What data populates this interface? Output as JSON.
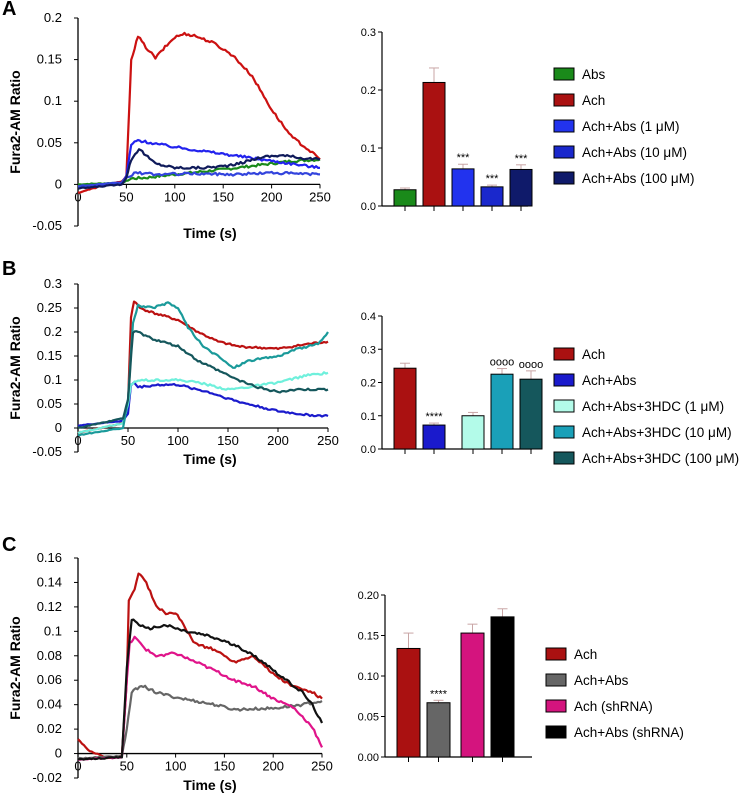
{
  "chart_data": [
    {
      "panel": "A",
      "type": "line",
      "xlabel": "Time (s)",
      "ylabel": "Fura2-AM Ratio",
      "xlim": [
        0,
        250
      ],
      "ylim": [
        -0.05,
        0.2
      ],
      "xticks": [
        0,
        50,
        100,
        150,
        200,
        250
      ],
      "yticks": [
        -0.05,
        0,
        0.05,
        0.1,
        0.15,
        0.2
      ],
      "ytick_labels": [
        "-0.05",
        "0",
        "0.05",
        "0.1",
        "0.15",
        "0.2"
      ],
      "series": [
        {
          "name": "Abs",
          "color": "#1a8a1a",
          "points": [
            [
              0,
              0
            ],
            [
              45,
              0.002
            ],
            [
              50,
              0.004
            ],
            [
              55,
              0.007
            ],
            [
              70,
              0.008
            ],
            [
              100,
              0.012
            ],
            [
              150,
              0.018
            ],
            [
              200,
              0.025
            ],
            [
              220,
              0.028
            ],
            [
              250,
              0.03
            ]
          ]
        },
        {
          "name": "Ach",
          "color": "#cc1111",
          "points": [
            [
              0,
              -0.01
            ],
            [
              30,
              0
            ],
            [
              45,
              0.003
            ],
            [
              50,
              0.01
            ],
            [
              55,
              0.15
            ],
            [
              62,
              0.178
            ],
            [
              70,
              0.165
            ],
            [
              80,
              0.152
            ],
            [
              90,
              0.165
            ],
            [
              100,
              0.177
            ],
            [
              110,
              0.181
            ],
            [
              120,
              0.179
            ],
            [
              140,
              0.17
            ],
            [
              160,
              0.155
            ],
            [
              180,
              0.13
            ],
            [
              200,
              0.09
            ],
            [
              220,
              0.058
            ],
            [
              240,
              0.04
            ],
            [
              250,
              0.03
            ]
          ]
        },
        {
          "name": "Ach+Abs (1 μM)",
          "color": "#2222ee",
          "points": [
            [
              0,
              -0.003
            ],
            [
              45,
              0.002
            ],
            [
              50,
              0.01
            ],
            [
              55,
              0.048
            ],
            [
              62,
              0.053
            ],
            [
              75,
              0.05
            ],
            [
              100,
              0.045
            ],
            [
              130,
              0.04
            ],
            [
              160,
              0.035
            ],
            [
              190,
              0.03
            ],
            [
              220,
              0.025
            ],
            [
              250,
              0.02
            ]
          ]
        },
        {
          "name": "Ach+Abs (10 μM)",
          "color": "#3344dd",
          "points": [
            [
              0,
              -0.002
            ],
            [
              45,
              0.002
            ],
            [
              50,
              0.008
            ],
            [
              60,
              0.014
            ],
            [
              80,
              0.012
            ],
            [
              120,
              0.013
            ],
            [
              160,
              0.012
            ],
            [
              200,
              0.014
            ],
            [
              250,
              0.012
            ]
          ]
        },
        {
          "name": "Ach+Abs (100 μM)",
          "color": "#0f1a5a",
          "points": [
            [
              0,
              -0.005
            ],
            [
              45,
              0
            ],
            [
              50,
              0.008
            ],
            [
              55,
              0.03
            ],
            [
              63,
              0.043
            ],
            [
              70,
              0.035
            ],
            [
              80,
              0.025
            ],
            [
              100,
              0.02
            ],
            [
              130,
              0.02
            ],
            [
              160,
              0.023
            ],
            [
              190,
              0.033
            ],
            [
              210,
              0.035
            ],
            [
              230,
              0.032
            ],
            [
              250,
              0.03
            ]
          ]
        }
      ]
    },
    {
      "panel": "A",
      "type": "bar",
      "categories": [
        "Abs",
        "Ach",
        "Ach+Abs (1 μM)",
        "Ach+Abs (10 μM)",
        "Ach+Abs (100 μM)"
      ],
      "values": [
        0.028,
        0.213,
        0.064,
        0.033,
        0.063
      ],
      "errors": [
        0.003,
        0.025,
        0.008,
        0.003,
        0.008
      ],
      "colors": [
        "#1a8a1a",
        "#aa1111",
        "#2233ee",
        "#1a28cc",
        "#0f1a6a"
      ],
      "significance": [
        "",
        "",
        "***",
        "***",
        "***"
      ],
      "ylim": [
        0,
        0.3
      ],
      "yticks": [
        0,
        0.1,
        0.2,
        0.3
      ],
      "ytick_labels": [
        "0.0",
        "0.1",
        "0.2",
        "0.3"
      ]
    },
    {
      "panel": "B",
      "type": "line",
      "xlabel": "Time (s)",
      "ylabel": "Fura2-AM Ratio",
      "xlim": [
        0,
        250
      ],
      "ylim": [
        -0.05,
        0.3
      ],
      "xticks": [
        0,
        50,
        100,
        150,
        200,
        250
      ],
      "yticks": [
        -0.05,
        0,
        0.05,
        0.1,
        0.15,
        0.2,
        0.25,
        0.3
      ],
      "ytick_labels": [
        "-0.05",
        "0",
        "0.05",
        "0.1",
        "0.15",
        "0.2",
        "0.25",
        "0.3"
      ],
      "series": [
        {
          "name": "Ach",
          "color": "#bb1111",
          "points": [
            [
              0,
              -0.01
            ],
            [
              45,
              0.01
            ],
            [
              50,
              0.05
            ],
            [
              53,
              0.23
            ],
            [
              56,
              0.265
            ],
            [
              62,
              0.25
            ],
            [
              75,
              0.24
            ],
            [
              100,
              0.225
            ],
            [
              120,
              0.2
            ],
            [
              140,
              0.18
            ],
            [
              160,
              0.17
            ],
            [
              200,
              0.165
            ],
            [
              230,
              0.175
            ],
            [
              250,
              0.18
            ]
          ]
        },
        {
          "name": "Ach+Abs",
          "color": "#1a1acc",
          "points": [
            [
              0,
              0.005
            ],
            [
              45,
              0.015
            ],
            [
              50,
              0.03
            ],
            [
              53,
              0.09
            ],
            [
              56,
              0.095
            ],
            [
              60,
              0.085
            ],
            [
              80,
              0.09
            ],
            [
              100,
              0.09
            ],
            [
              130,
              0.075
            ],
            [
              160,
              0.055
            ],
            [
              200,
              0.035
            ],
            [
              230,
              0.027
            ],
            [
              250,
              0.025
            ]
          ]
        },
        {
          "name": "Ach+Abs+3HDC (1 μM)",
          "color": "#6ff0dc",
          "points": [
            [
              0,
              -0.01
            ],
            [
              45,
              0.01
            ],
            [
              50,
              0.05
            ],
            [
              53,
              0.09
            ],
            [
              60,
              0.1
            ],
            [
              80,
              0.1
            ],
            [
              100,
              0.1
            ],
            [
              120,
              0.095
            ],
            [
              150,
              0.08
            ],
            [
              170,
              0.085
            ],
            [
              200,
              0.095
            ],
            [
              230,
              0.11
            ],
            [
              250,
              0.115
            ]
          ]
        },
        {
          "name": "Ach+Abs+3HDC (10 μM)",
          "color": "#1a9a9a",
          "points": [
            [
              0,
              -0.015
            ],
            [
              45,
              0
            ],
            [
              50,
              0.06
            ],
            [
              55,
              0.22
            ],
            [
              60,
              0.255
            ],
            [
              75,
              0.25
            ],
            [
              90,
              0.26
            ],
            [
              100,
              0.25
            ],
            [
              110,
              0.21
            ],
            [
              125,
              0.17
            ],
            [
              140,
              0.15
            ],
            [
              155,
              0.125
            ],
            [
              170,
              0.14
            ],
            [
              200,
              0.15
            ],
            [
              220,
              0.165
            ],
            [
              240,
              0.175
            ],
            [
              250,
              0.2
            ]
          ]
        },
        {
          "name": "Ach+Abs+3HDC (100 μM)",
          "color": "#15575c",
          "points": [
            [
              0,
              0
            ],
            [
              45,
              0.02
            ],
            [
              50,
              0.06
            ],
            [
              55,
              0.2
            ],
            [
              60,
              0.2
            ],
            [
              75,
              0.185
            ],
            [
              100,
              0.17
            ],
            [
              120,
              0.14
            ],
            [
              140,
              0.12
            ],
            [
              160,
              0.1
            ],
            [
              180,
              0.085
            ],
            [
              200,
              0.075
            ],
            [
              220,
              0.08
            ],
            [
              250,
              0.08
            ]
          ]
        }
      ]
    },
    {
      "panel": "B",
      "type": "bar",
      "categories": [
        "Ach",
        "Ach+Abs",
        "Ach+Abs+3HDC (1 μM)",
        "Ach+Abs+3HDC (10 μM)",
        "Ach+Abs+3HDC (100 μM)"
      ],
      "values": [
        0.243,
        0.072,
        0.1,
        0.225,
        0.21
      ],
      "errors": [
        0.015,
        0.006,
        0.01,
        0.017,
        0.025
      ],
      "colors": [
        "#aa1111",
        "#1a1acc",
        "#b3fbe9",
        "#1aa0b8",
        "#15575c"
      ],
      "significance": [
        "",
        "****",
        "",
        "oooo",
        "oooo"
      ],
      "ylim": [
        0,
        0.4
      ],
      "yticks": [
        0,
        0.1,
        0.2,
        0.3,
        0.4
      ],
      "ytick_labels": [
        "0.0",
        "0.1",
        "0.2",
        "0.3",
        "0.4"
      ]
    },
    {
      "panel": "C",
      "type": "line",
      "xlabel": "Time (s)",
      "ylabel": "Fura2-AM Ratio",
      "xlim": [
        0,
        250
      ],
      "ylim": [
        -0.02,
        0.16
      ],
      "xticks": [
        0,
        50,
        100,
        150,
        200,
        250
      ],
      "yticks": [
        -0.02,
        0,
        0.02,
        0.04,
        0.06,
        0.08,
        0.1,
        0.12,
        0.14,
        0.16
      ],
      "ytick_labels": [
        "-0.02",
        "0",
        "0.02",
        "0.04",
        "0.06",
        "0.08",
        "0.1",
        "0.12",
        "0.14",
        "0.16"
      ],
      "series": [
        {
          "name": "Ach",
          "color": "#bb1111",
          "points": [
            [
              0,
              0.012
            ],
            [
              10,
              0.003
            ],
            [
              30,
              -0.004
            ],
            [
              45,
              -0.002
            ],
            [
              50,
              0.06
            ],
            [
              52,
              0.125
            ],
            [
              58,
              0.135
            ],
            [
              62,
              0.148
            ],
            [
              70,
              0.14
            ],
            [
              80,
              0.12
            ],
            [
              90,
              0.115
            ],
            [
              100,
              0.115
            ],
            [
              120,
              0.09
            ],
            [
              140,
              0.085
            ],
            [
              160,
              0.075
            ],
            [
              180,
              0.08
            ],
            [
              200,
              0.065
            ],
            [
              220,
              0.055
            ],
            [
              240,
              0.05
            ],
            [
              250,
              0.045
            ]
          ]
        },
        {
          "name": "Ach+Abs",
          "color": "#666666",
          "points": [
            [
              0,
              -0.004
            ],
            [
              45,
              -0.002
            ],
            [
              50,
              0.02
            ],
            [
              55,
              0.05
            ],
            [
              65,
              0.056
            ],
            [
              80,
              0.05
            ],
            [
              100,
              0.046
            ],
            [
              140,
              0.04
            ],
            [
              160,
              0.036
            ],
            [
              200,
              0.037
            ],
            [
              230,
              0.04
            ],
            [
              250,
              0.043
            ]
          ]
        },
        {
          "name": "Ach (shRNA)",
          "color": "#e0148a",
          "points": [
            [
              0,
              -0.005
            ],
            [
              45,
              -0.003
            ],
            [
              50,
              0.06
            ],
            [
              53,
              0.09
            ],
            [
              58,
              0.095
            ],
            [
              70,
              0.085
            ],
            [
              80,
              0.08
            ],
            [
              100,
              0.082
            ],
            [
              120,
              0.075
            ],
            [
              140,
              0.068
            ],
            [
              160,
              0.06
            ],
            [
              180,
              0.055
            ],
            [
              200,
              0.045
            ],
            [
              220,
              0.038
            ],
            [
              240,
              0.022
            ],
            [
              250,
              0.005
            ]
          ]
        },
        {
          "name": "Ach+Abs (shRNA)",
          "color": "#111111",
          "points": [
            [
              0,
              -0.005
            ],
            [
              45,
              -0.003
            ],
            [
              50,
              0.07
            ],
            [
              55,
              0.11
            ],
            [
              70,
              0.102
            ],
            [
              90,
              0.105
            ],
            [
              110,
              0.1
            ],
            [
              130,
              0.097
            ],
            [
              150,
              0.092
            ],
            [
              170,
              0.085
            ],
            [
              190,
              0.075
            ],
            [
              210,
              0.062
            ],
            [
              230,
              0.05
            ],
            [
              240,
              0.04
            ],
            [
              250,
              0.025
            ]
          ]
        }
      ]
    },
    {
      "panel": "C",
      "type": "bar",
      "categories": [
        "Ach",
        "Ach+Abs",
        "Ach (shRNA)",
        "Ach+Abs (shRNA)"
      ],
      "values": [
        0.134,
        0.067,
        0.153,
        0.173
      ],
      "errors": [
        0.019,
        0.003,
        0.011,
        0.01
      ],
      "colors": [
        "#aa1111",
        "#666666",
        "#d4147e",
        "#000000"
      ],
      "significance": [
        "",
        "****",
        "",
        ""
      ],
      "ylim": [
        0,
        0.2
      ],
      "yticks": [
        0,
        0.05,
        0.1,
        0.15,
        0.2
      ],
      "ytick_labels": [
        "0.00",
        "0.05",
        "0.10",
        "0.15",
        "0.20"
      ]
    }
  ]
}
